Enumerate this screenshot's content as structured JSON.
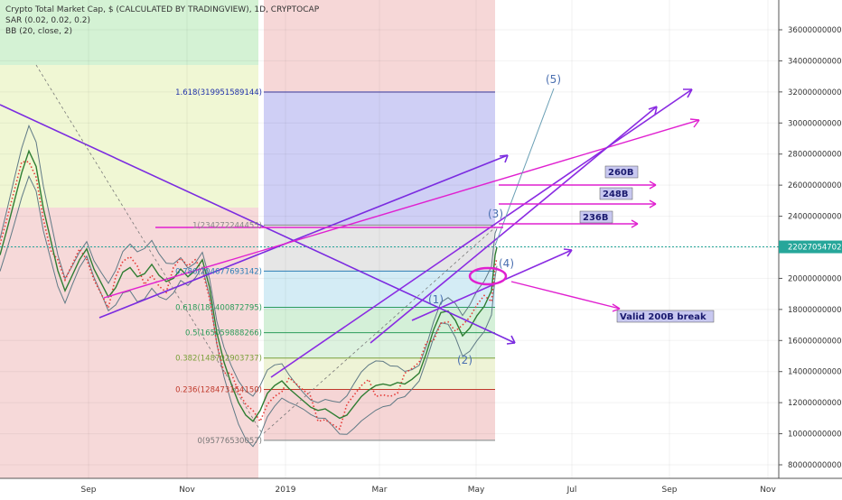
{
  "header": {
    "title": "Crypto Total Market Cap, $ (CALCULATED BY TRADINGVIEW), 1D, CRYPTOCAP",
    "indicators": [
      "SAR (0.02, 0.02, 0.2)",
      "BB (20, close, 2)"
    ]
  },
  "chart_data": {
    "type": "line",
    "x_ticks": [
      "Sep",
      "Nov",
      "2019",
      "Mar",
      "May",
      "Jul",
      "Sep",
      "Nov"
    ],
    "y_ticks": [
      "80000000000",
      "100000000000",
      "120000000000",
      "140000000000",
      "160000000000",
      "180000000000",
      "200000000000",
      "220000000000",
      "240000000000",
      "260000000000",
      "280000000000",
      "300000000000",
      "320000000000",
      "340000000000",
      "360000000000"
    ],
    "ylim": [
      75000000000,
      370000000000
    ],
    "current_price": {
      "label": "220270547023",
      "value": 220270547023
    },
    "fib_levels": [
      {
        "label": "1.618(319951589144)",
        "value": 319951589144
      },
      {
        "label": "1(234272244455)",
        "value": 234272244455
      },
      {
        "label": "0.786(204677693142)",
        "value": 204677693142
      },
      {
        "label": "0.618(181400872795)",
        "value": 181400872795
      },
      {
        "label": "0.5(165059888266)",
        "value": 165059888266
      },
      {
        "label": "0.382(148702903737)",
        "value": 148702903737
      },
      {
        "label": "0.236(128473154150)",
        "value": 128473154150
      },
      {
        "label": "0(95776530057)",
        "value": 95776530057
      }
    ],
    "wave_labels": [
      "(1)",
      "(2)",
      "(3)",
      "(4)",
      "(5)"
    ],
    "target_labels": [
      "260B",
      "248B",
      "236B"
    ],
    "annotation": "Valid 200B break",
    "price_series": [
      [
        0,
        215
      ],
      [
        8,
        232
      ],
      [
        16,
        250
      ],
      [
        24,
        268
      ],
      [
        32,
        282
      ],
      [
        40,
        272
      ],
      [
        48,
        245
      ],
      [
        56,
        225
      ],
      [
        64,
        205
      ],
      [
        72,
        192
      ],
      [
        80,
        202
      ],
      [
        88,
        212
      ],
      [
        96,
        219
      ],
      [
        104,
        206
      ],
      [
        112,
        197
      ],
      [
        120,
        188
      ],
      [
        128,
        194
      ],
      [
        136,
        204
      ],
      [
        144,
        207
      ],
      [
        152,
        201
      ],
      [
        160,
        203
      ],
      [
        168,
        209
      ],
      [
        176,
        202
      ],
      [
        184,
        198
      ],
      [
        192,
        200
      ],
      [
        200,
        206
      ],
      [
        208,
        201
      ],
      [
        216,
        205
      ],
      [
        224,
        212
      ],
      [
        232,
        194
      ],
      [
        240,
        165
      ],
      [
        248,
        146
      ],
      [
        256,
        132
      ],
      [
        264,
        120
      ],
      [
        272,
        112
      ],
      [
        280,
        108
      ],
      [
        288,
        115
      ],
      [
        296,
        126
      ],
      [
        304,
        131
      ],
      [
        312,
        134
      ],
      [
        320,
        129
      ],
      [
        328,
        125
      ],
      [
        336,
        121
      ],
      [
        344,
        117
      ],
      [
        352,
        115
      ],
      [
        360,
        116
      ],
      [
        368,
        113
      ],
      [
        376,
        110
      ],
      [
        384,
        112
      ],
      [
        392,
        118
      ],
      [
        400,
        124
      ],
      [
        408,
        128
      ],
      [
        416,
        131
      ],
      [
        424,
        132
      ],
      [
        432,
        131
      ],
      [
        440,
        133
      ],
      [
        448,
        132
      ],
      [
        456,
        135
      ],
      [
        464,
        139
      ],
      [
        472,
        152
      ],
      [
        480,
        167
      ],
      [
        488,
        178
      ],
      [
        496,
        179
      ],
      [
        504,
        173
      ],
      [
        512,
        163
      ],
      [
        520,
        168
      ],
      [
        528,
        176
      ],
      [
        536,
        182
      ],
      [
        544,
        192
      ],
      [
        548,
        215
      ],
      [
        550,
        220
      ]
    ]
  }
}
